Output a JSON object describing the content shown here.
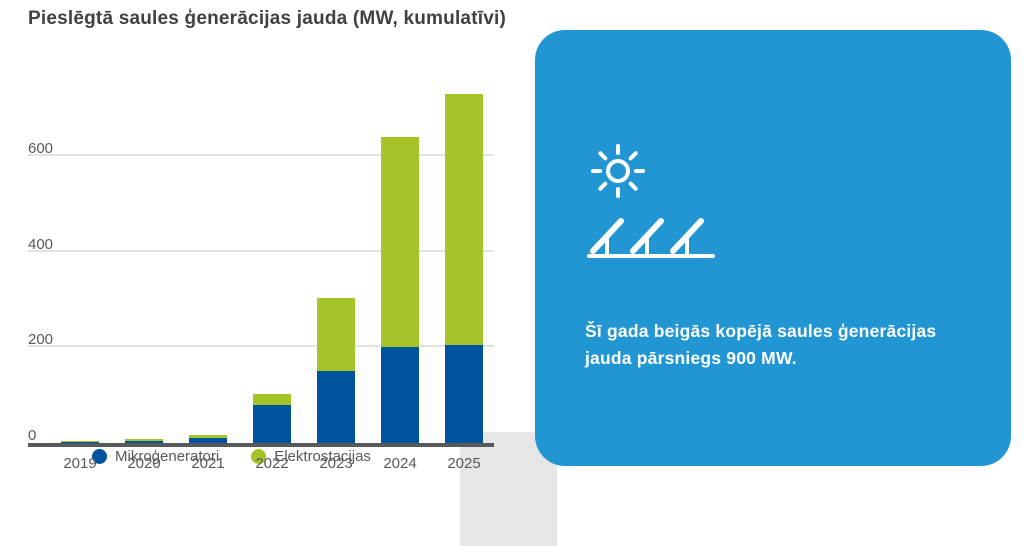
{
  "page": {
    "title": "Pieslēgtā saules ģenerācijas jauda (MW, kumulatīvi)"
  },
  "chart_data": {
    "type": "bar",
    "stacked": true,
    "title": "Pieslēgtā saules ģenerācijas jauda (MW, kumulatīvi)",
    "categories": [
      "2019",
      "2020",
      "2021",
      "2022",
      "2023",
      "2024",
      "2025"
    ],
    "series": [
      {
        "name": "Mikroģeneratori",
        "color": "#00549f",
        "values": [
          3,
          5,
          11,
          80,
          150,
          200,
          205
        ]
      },
      {
        "name": "Elektrostacijas",
        "color": "#a4c42a",
        "values": [
          2,
          4,
          6,
          22,
          152,
          440,
          525
        ]
      }
    ],
    "xlabel": "",
    "ylabel": "",
    "yticks": [
      0,
      200,
      400,
      600
    ],
    "ylim": [
      0,
      800
    ],
    "grid": true,
    "legend_position": "bottom"
  },
  "card": {
    "background": "#2196d3",
    "text": "Šī gada beigās kopējā saules ģenerācijas jauda pārsniegs 900 MW.",
    "icons": [
      "sun-icon",
      "solar-panels-icon"
    ]
  },
  "colors": {
    "micro": "#00549f",
    "elektro": "#a4c42a",
    "card": "#2196d3",
    "axis": "#58595b"
  }
}
